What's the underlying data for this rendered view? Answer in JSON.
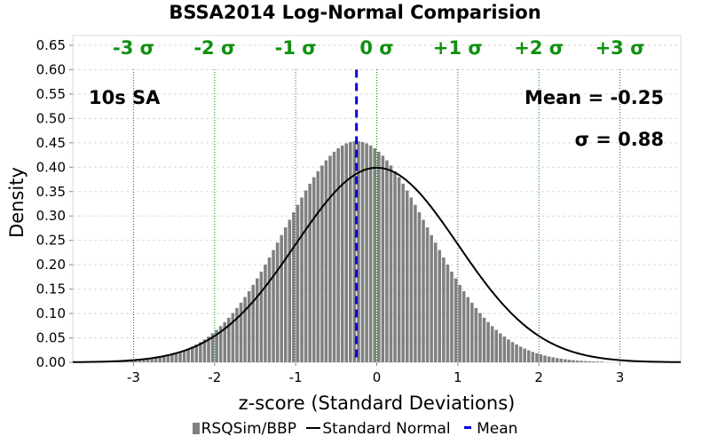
{
  "chart_data": {
    "type": "bar",
    "title": "BSSA2014 Log-Normal Comparision",
    "xlabel": "z-score (Standard Deviations)",
    "ylabel": "Density",
    "xlim": [
      -3.75,
      3.75
    ],
    "ylim": [
      0,
      0.67
    ],
    "x_ticks": [
      -3,
      -2,
      -1,
      0,
      1,
      2,
      3
    ],
    "y_ticks": [
      0.0,
      0.05,
      0.1,
      0.15,
      0.2,
      0.25,
      0.3,
      0.35,
      0.4,
      0.45,
      0.5,
      0.55,
      0.6,
      0.65
    ],
    "sigma_lines": [
      {
        "x": -3,
        "label": "-3 σ"
      },
      {
        "x": -2,
        "label": "-2 σ"
      },
      {
        "x": -1,
        "label": "-1 σ"
      },
      {
        "x": 0,
        "label": "0 σ"
      },
      {
        "x": 1,
        "label": "+1 σ"
      },
      {
        "x": 2,
        "label": "+2 σ"
      },
      {
        "x": 3,
        "label": "+3 σ"
      }
    ],
    "annotations": {
      "period": "10s SA",
      "mean": "Mean = -0.25",
      "sigma": "σ = 0.88"
    },
    "series": [
      {
        "name": "RSQSim/BBP",
        "kind": "histogram",
        "color": "#808080",
        "mean": -0.25,
        "sd": 0.88,
        "bin_width": 0.05,
        "x_range": [
          -3.2,
          2.8
        ]
      },
      {
        "name": "Standard Normal",
        "kind": "line",
        "color": "#000000",
        "mean": 0,
        "sd": 1
      },
      {
        "name": "Mean",
        "kind": "vline",
        "color": "#0000dd",
        "x": -0.25,
        "y_top": 0.6
      }
    ],
    "grid": true,
    "legend_position": "bottom"
  }
}
